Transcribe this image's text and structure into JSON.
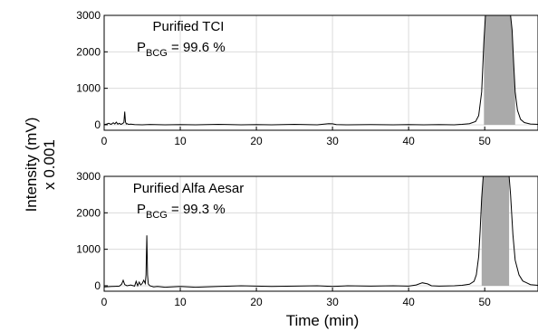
{
  "chart_data": {
    "type": "line",
    "xlabel": "Time (min)",
    "ylabel_line1": "Intensity (mV)",
    "ylabel_line2": "x 0.001",
    "grid": true,
    "shared_x_axis": true,
    "xlim": [
      0,
      57
    ],
    "xticks": [
      0,
      10,
      20,
      30,
      40,
      50
    ],
    "ylim": [
      -150,
      3000
    ],
    "yticks": [
      0,
      1000,
      2000,
      3000
    ],
    "panels": [
      {
        "annotation": "Purified TCI",
        "purity_symbol": "P",
        "purity_subscript": "BCG",
        "purity_value": " = 99.6 %",
        "shaded_peak_range": [
          49.9,
          54.0
        ],
        "series": {
          "x": [
            0,
            0.3,
            0.6,
            0.9,
            1.2,
            1.4,
            1.6,
            1.8,
            2.0,
            2.2,
            2.4,
            2.6,
            2.7,
            2.8,
            2.9,
            3.0,
            3.2,
            3.5,
            4,
            5,
            6,
            8,
            10,
            12,
            15,
            18,
            20,
            22,
            25,
            28,
            29.5,
            30,
            30.5,
            32,
            35,
            38,
            40,
            42,
            44,
            46,
            47,
            48,
            48.8,
            49.2,
            49.6,
            49.9,
            50.1,
            50.3,
            50.5,
            50.6,
            53.3,
            53.4,
            53.6,
            53.8,
            54.0,
            54.3,
            54.7,
            55.2,
            56,
            57
          ],
          "y": [
            5,
            15,
            40,
            10,
            55,
            20,
            70,
            15,
            40,
            10,
            30,
            60,
            360,
            80,
            20,
            30,
            10,
            15,
            5,
            0,
            8,
            0,
            5,
            0,
            10,
            0,
            5,
            0,
            10,
            0,
            30,
            25,
            5,
            0,
            5,
            0,
            5,
            0,
            5,
            0,
            10,
            30,
            90,
            250,
            900,
            2300,
            3000,
            3000,
            3000,
            3000,
            3000,
            3000,
            2600,
            1700,
            900,
            400,
            150,
            60,
            20,
            10
          ]
        }
      },
      {
        "annotation": "Purified Alfa Aesar",
        "purity_symbol": "P",
        "purity_subscript": "BCG",
        "purity_value": " = 99.3 %",
        "shaded_peak_range": [
          49.6,
          53.2
        ],
        "series": {
          "x": [
            0,
            1,
            2,
            2.3,
            2.5,
            2.7,
            3.0,
            3.5,
            4.0,
            4.2,
            4.4,
            4.6,
            4.8,
            5.0,
            5.2,
            5.4,
            5.5,
            5.6,
            5.7,
            5.8,
            6.0,
            6.5,
            7,
            8,
            10,
            12,
            15,
            18,
            20,
            22,
            25,
            28,
            30,
            32,
            35,
            38,
            40,
            41,
            41.8,
            42.5,
            43,
            44,
            46,
            47,
            48,
            48.6,
            48.9,
            49.2,
            49.4,
            49.6,
            49.8,
            50.0,
            50.2,
            53.0,
            53.2,
            53.4,
            53.7,
            54.0,
            54.5,
            55.0,
            55.5,
            56,
            57
          ],
          "y": [
            -30,
            -20,
            -10,
            40,
            150,
            30,
            0,
            20,
            -10,
            120,
            0,
            100,
            20,
            60,
            150,
            60,
            300,
            1380,
            300,
            50,
            0,
            -30,
            -20,
            -40,
            -20,
            -40,
            -20,
            0,
            -10,
            -20,
            -10,
            0,
            -20,
            0,
            -10,
            0,
            -10,
            20,
            80,
            50,
            0,
            -10,
            0,
            10,
            40,
            120,
            300,
            800,
            1500,
            2400,
            3000,
            3000,
            3000,
            3000,
            3000,
            2500,
            1400,
            700,
            300,
            130,
            80,
            30,
            10
          ]
        }
      }
    ]
  }
}
